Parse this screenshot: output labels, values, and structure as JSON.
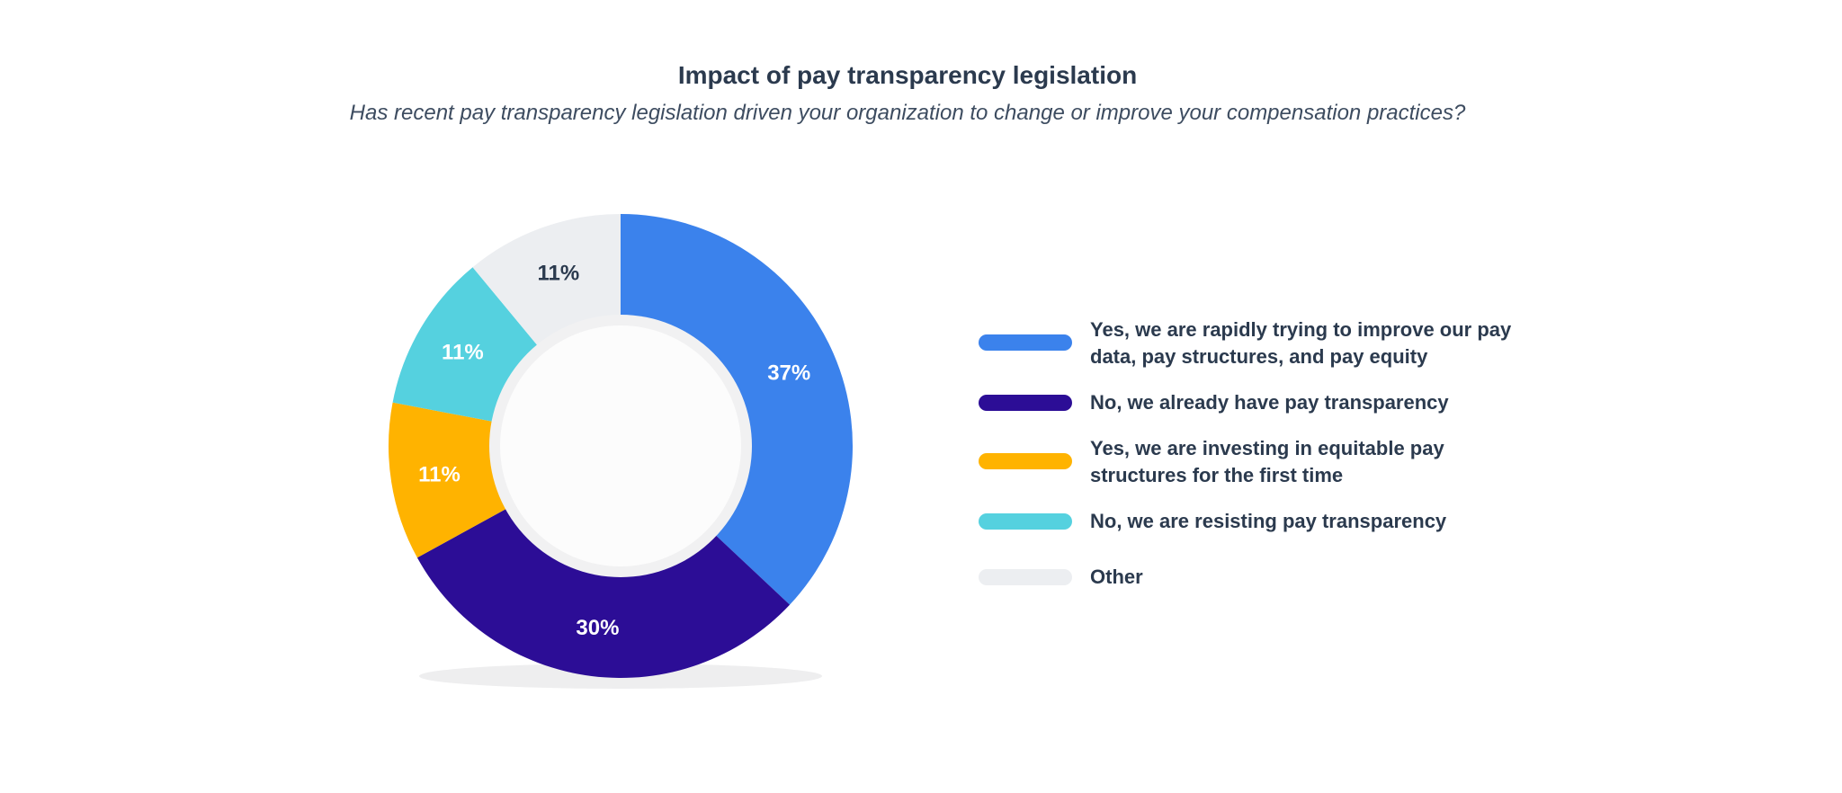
{
  "title": "Impact of pay transparency legislation",
  "subtitle": "Has recent pay transparency legislation driven your organization to change or improve your compensation practices?",
  "chart_data": {
    "type": "pie",
    "title": "Impact of pay transparency legislation",
    "subtitle": "Has recent pay transparency legislation driven your organization to change or improve your compensation practices?",
    "donut": true,
    "legend_position": "right",
    "slices": [
      {
        "label": "Yes, we are rapidly trying to improve our pay data, pay structures, and pay equity",
        "value": 37,
        "display": "37%",
        "color": "#3b82ec"
      },
      {
        "label": "No, we already have pay transparency",
        "value": 30,
        "display": "30%",
        "color": "#2c0d96"
      },
      {
        "label": "Yes, we are investing in equitable pay structures for the first time",
        "value": 11,
        "display": "11%",
        "color": "#ffb300"
      },
      {
        "label": "No, we are resisting pay transparency",
        "value": 11,
        "display": "11%",
        "color": "#55d1df"
      },
      {
        "label": "Other",
        "value": 11,
        "display": "11%",
        "color": "#eceef1"
      }
    ]
  }
}
